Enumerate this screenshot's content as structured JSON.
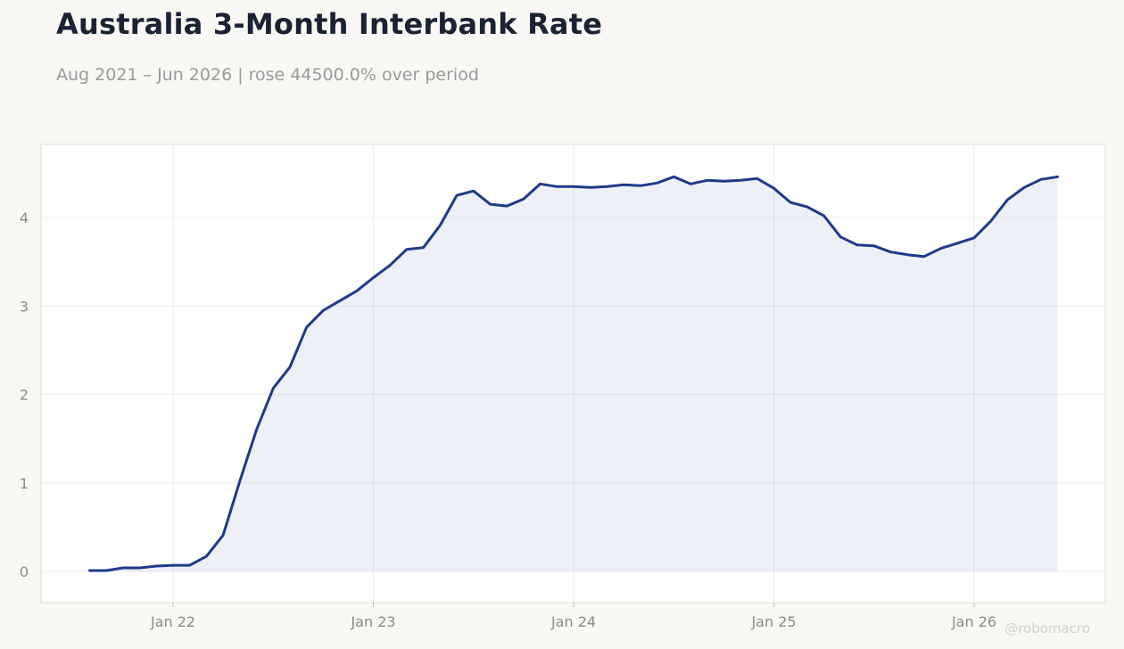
{
  "header": {
    "title": "Australia 3-Month Interbank Rate",
    "subtitle": "Aug 2021 – Jun 2026 | rose 44500.0% over period"
  },
  "watermark": "@robomacro",
  "colors": {
    "line": "#1f3a8a",
    "area_fill": "#1f3a8a",
    "background": "#f9f8f5",
    "plot_bg": "#ffffff",
    "grid": "#ececec",
    "axis_border": "#dcdcd4"
  },
  "chart_data": {
    "type": "area",
    "title": "Australia 3-Month Interbank Rate",
    "subtitle": "Aug 2021 – Jun 2026 | rose 44500.0% over period",
    "xlabel": "",
    "ylabel": "",
    "x_ticks": [
      "Jan 22",
      "Jan 23",
      "Jan 24",
      "Jan 25",
      "Jan 26"
    ],
    "y_ticks": [
      0,
      1,
      2,
      3,
      4
    ],
    "xlim": [
      "2021-06",
      "2026-08"
    ],
    "ylim": [
      -0.35,
      4.8
    ],
    "grid": true,
    "legend": "none",
    "series": [
      {
        "x": [
          "2021-08",
          "2021-09",
          "2021-10",
          "2021-11",
          "2021-12",
          "2022-01",
          "2022-02",
          "2022-03",
          "2022-04",
          "2022-05",
          "2022-06",
          "2022-07",
          "2022-08",
          "2022-09",
          "2022-10",
          "2022-11",
          "2022-12",
          "2023-01",
          "2023-02",
          "2023-03",
          "2023-04",
          "2023-05",
          "2023-06",
          "2023-07",
          "2023-08",
          "2023-09",
          "2023-10",
          "2023-11",
          "2023-12",
          "2024-01",
          "2024-02",
          "2024-03",
          "2024-04",
          "2024-05",
          "2024-06",
          "2024-07",
          "2024-08",
          "2024-09",
          "2024-10",
          "2024-11",
          "2024-12",
          "2025-01",
          "2025-02",
          "2025-03",
          "2025-04",
          "2025-05",
          "2025-06",
          "2025-07",
          "2025-08",
          "2025-09",
          "2025-10",
          "2025-11",
          "2025-12",
          "2026-01",
          "2026-02",
          "2026-03",
          "2026-04",
          "2026-05",
          "2026-06"
        ],
        "y": [
          0.01,
          0.01,
          0.04,
          0.04,
          0.06,
          0.07,
          0.07,
          0.17,
          0.41,
          1.02,
          1.6,
          2.07,
          2.31,
          2.76,
          2.95,
          3.06,
          3.17,
          3.32,
          3.46,
          3.64,
          3.66,
          3.91,
          4.25,
          4.3,
          4.15,
          4.13,
          4.21,
          4.38,
          4.35,
          4.35,
          4.34,
          4.35,
          4.37,
          4.36,
          4.39,
          4.46,
          4.38,
          4.42,
          4.41,
          4.42,
          4.44,
          4.33,
          4.17,
          4.12,
          4.02,
          3.78,
          3.69,
          3.68,
          3.61,
          3.58,
          3.56,
          3.65,
          3.71,
          3.77,
          3.96,
          4.2,
          4.34,
          4.43,
          4.46
        ]
      }
    ]
  }
}
